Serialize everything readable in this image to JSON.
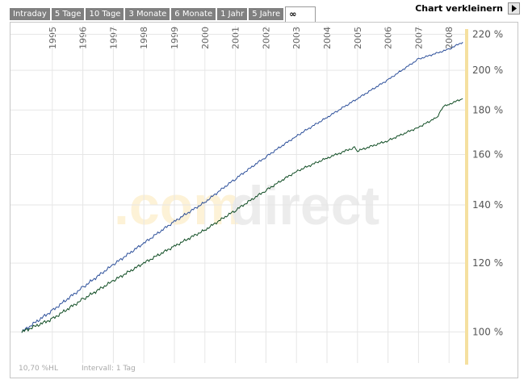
{
  "tabs": [
    "Intraday",
    "5 Tage",
    "10 Tage",
    "3 Monate",
    "6 Monate",
    "1 Jahr",
    "5 Jahre",
    "∞"
  ],
  "active_tab": 7,
  "shrink_label": "Chart verkleinern",
  "watermark": {
    "part1": ".com",
    "part2": "direct"
  },
  "footer": {
    "scale": "10,70 %HL",
    "interval": "Intervall: 1 Tag"
  },
  "colors": {
    "tab_bg": "#808080",
    "series1": "#2c4f9a",
    "series2": "#0f4c23",
    "grid": "#e6e6e6",
    "cursor": "#f5e0a0",
    "watermark1": "#fdf2d7",
    "watermark2": "#ececec"
  },
  "chart_data": {
    "type": "line",
    "x_ticks": [
      "1995",
      "1996",
      "1997",
      "1998",
      "1999",
      "2000",
      "2001",
      "2002",
      "2003",
      "2004",
      "2005",
      "2006",
      "2007",
      "2008"
    ],
    "y_ticks": [
      "220 %",
      "200 %",
      "180 %",
      "160 %",
      "140 %",
      "120 %",
      "100 %"
    ],
    "y_values": [
      220,
      200,
      180,
      160,
      140,
      120,
      100
    ],
    "ylim": [
      92,
      221
    ],
    "xlim": [
      1994.0,
      2008.5
    ],
    "y_scale": "log",
    "grid": true,
    "series": [
      {
        "x": [
          1994.0,
          1995.0,
          1996.0,
          1997.0,
          1998.0,
          1999.0,
          2000.0,
          2001.0,
          2002.0,
          2003.0,
          2004.0,
          2005.0,
          2006.0,
          2007.0,
          2008.0,
          2008.45
        ],
        "values": [
          100,
          105.8,
          112.5,
          119.5,
          126.5,
          134.0,
          141.0,
          150.0,
          159.0,
          168.0,
          176.5,
          185.5,
          195.0,
          206.0,
          211.5,
          215.5
        ]
      },
      {
        "x": [
          1994.0,
          1995.0,
          1996.0,
          1997.0,
          1998.0,
          1999.0,
          2000.0,
          2001.0,
          2002.0,
          2003.0,
          2004.0,
          2004.9,
          2005.0,
          2006.0,
          2007.0,
          2007.6,
          2007.8,
          2008.0,
          2008.45
        ],
        "values": [
          100,
          103.5,
          109.0,
          114.5,
          120.0,
          125.5,
          131.0,
          138.0,
          145.5,
          153.0,
          158.5,
          163.0,
          161.5,
          166.0,
          172.0,
          176.5,
          181.5,
          182.8,
          185.5
        ]
      }
    ]
  }
}
